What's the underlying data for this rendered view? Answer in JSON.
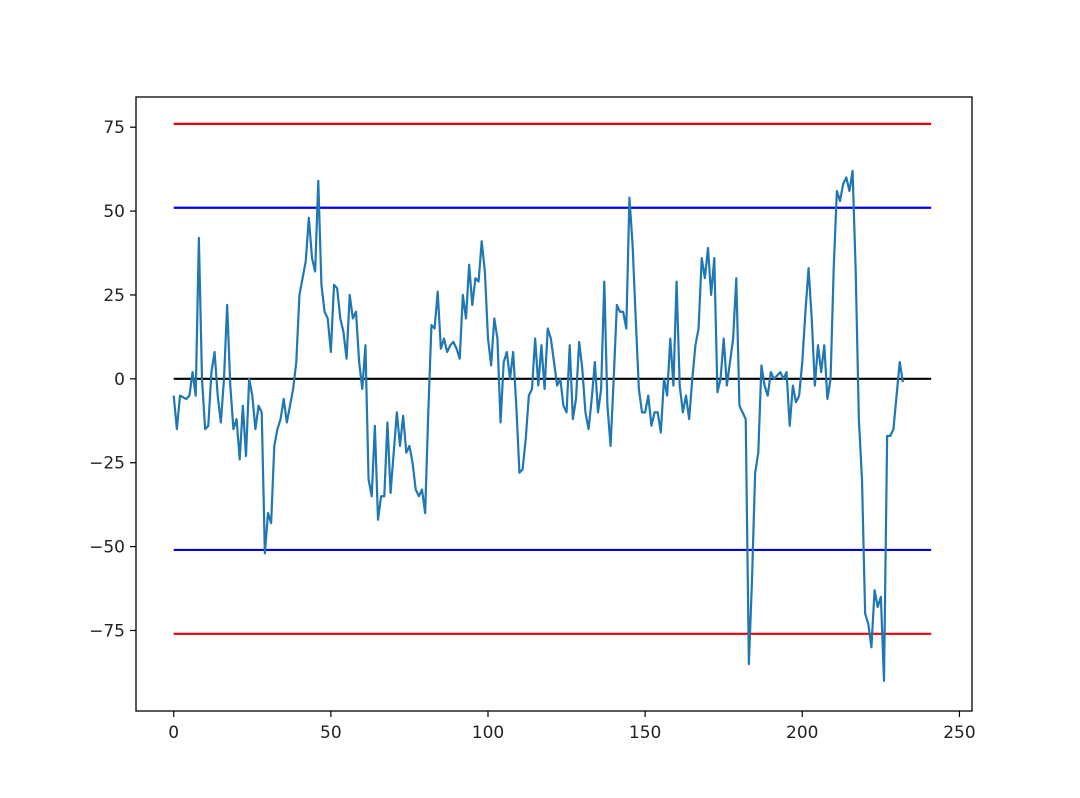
{
  "chart_data": {
    "type": "line",
    "title": "",
    "xlabel": "",
    "ylabel": "",
    "xlim": [
      -12,
      254
    ],
    "ylim": [
      -99,
      84
    ],
    "xticks": [
      0,
      50,
      100,
      150,
      200,
      250
    ],
    "yticks": [
      -75,
      -50,
      -25,
      0,
      25,
      50,
      75
    ],
    "xtick_labels": [
      "0",
      "50",
      "100",
      "150",
      "200",
      "250"
    ],
    "ytick_labels": [
      "−75",
      "−50",
      "−25",
      "0",
      "25",
      "50",
      "75"
    ],
    "grid": false,
    "reference_lines": [
      {
        "y": 76,
        "x_range": [
          0,
          241
        ],
        "color": "#e8000b"
      },
      {
        "y": 51,
        "x_range": [
          0,
          241
        ],
        "color": "#0000ee"
      },
      {
        "y": 0,
        "x_range": [
          0,
          241
        ],
        "color": "#000000"
      },
      {
        "y": -51,
        "x_range": [
          0,
          241
        ],
        "color": "#0000ee"
      },
      {
        "y": -76,
        "x_range": [
          0,
          241
        ],
        "color": "#e8000b"
      }
    ],
    "series": [
      {
        "color": "#1f77b4",
        "points": [
          [
            0,
            -5
          ],
          [
            1,
            -15
          ],
          [
            2,
            -5
          ],
          [
            4,
            -6
          ],
          [
            5,
            -5
          ],
          [
            6,
            2
          ],
          [
            7,
            -5
          ],
          [
            8,
            42
          ],
          [
            9,
            0
          ],
          [
            10,
            -15
          ],
          [
            11,
            -14
          ],
          [
            12,
            2
          ],
          [
            13,
            8
          ],
          [
            14,
            -5
          ],
          [
            15,
            -13
          ],
          [
            16,
            0
          ],
          [
            17,
            22
          ],
          [
            18,
            -2
          ],
          [
            19,
            -15
          ],
          [
            20,
            -12
          ],
          [
            21,
            -24
          ],
          [
            22,
            -8
          ],
          [
            23,
            -23
          ],
          [
            24,
            0
          ],
          [
            25,
            -5
          ],
          [
            26,
            -15
          ],
          [
            27,
            -8
          ],
          [
            28,
            -10
          ],
          [
            29,
            -52
          ],
          [
            30,
            -40
          ],
          [
            31,
            -43
          ],
          [
            32,
            -20
          ],
          [
            33,
            -15
          ],
          [
            34,
            -12
          ],
          [
            35,
            -6
          ],
          [
            36,
            -13
          ],
          [
            37,
            -8
          ],
          [
            38,
            -3
          ],
          [
            39,
            5
          ],
          [
            40,
            25
          ],
          [
            42,
            35
          ],
          [
            43,
            48
          ],
          [
            44,
            36
          ],
          [
            45,
            32
          ],
          [
            46,
            59
          ],
          [
            47,
            28
          ],
          [
            48,
            20
          ],
          [
            49,
            18
          ],
          [
            50,
            8
          ],
          [
            51,
            28
          ],
          [
            52,
            27
          ],
          [
            53,
            18
          ],
          [
            54,
            14
          ],
          [
            55,
            6
          ],
          [
            56,
            25
          ],
          [
            57,
            18
          ],
          [
            58,
            20
          ],
          [
            59,
            5
          ],
          [
            60,
            -3
          ],
          [
            61,
            10
          ],
          [
            62,
            -30
          ],
          [
            63,
            -35
          ],
          [
            64,
            -14
          ],
          [
            65,
            -42
          ],
          [
            66,
            -35
          ],
          [
            67,
            -35
          ],
          [
            68,
            -13
          ],
          [
            69,
            -34
          ],
          [
            70,
            -22
          ],
          [
            71,
            -10
          ],
          [
            72,
            -20
          ],
          [
            73,
            -11
          ],
          [
            74,
            -22
          ],
          [
            75,
            -20
          ],
          [
            76,
            -25
          ],
          [
            77,
            -33
          ],
          [
            78,
            -35
          ],
          [
            79,
            -33
          ],
          [
            80,
            -40
          ],
          [
            81,
            -10
          ],
          [
            82,
            16
          ],
          [
            83,
            15
          ],
          [
            84,
            26
          ],
          [
            85,
            9
          ],
          [
            86,
            12
          ],
          [
            87,
            8
          ],
          [
            88,
            10
          ],
          [
            89,
            11
          ],
          [
            90,
            9
          ],
          [
            91,
            6
          ],
          [
            92,
            25
          ],
          [
            93,
            18
          ],
          [
            94,
            34
          ],
          [
            95,
            22
          ],
          [
            96,
            30
          ],
          [
            97,
            29
          ],
          [
            98,
            41
          ],
          [
            99,
            32
          ],
          [
            100,
            12
          ],
          [
            101,
            4
          ],
          [
            102,
            18
          ],
          [
            103,
            12
          ],
          [
            104,
            -13
          ],
          [
            105,
            5
          ],
          [
            106,
            8
          ],
          [
            107,
            0
          ],
          [
            108,
            8
          ],
          [
            109,
            -8
          ],
          [
            110,
            -28
          ],
          [
            111,
            -27
          ],
          [
            112,
            -18
          ],
          [
            113,
            -5
          ],
          [
            114,
            -3
          ],
          [
            115,
            12
          ],
          [
            116,
            -2
          ],
          [
            117,
            10
          ],
          [
            118,
            -3
          ],
          [
            119,
            15
          ],
          [
            120,
            12
          ],
          [
            121,
            5
          ],
          [
            122,
            -2
          ],
          [
            123,
            0
          ],
          [
            124,
            -8
          ],
          [
            125,
            -10
          ],
          [
            126,
            10
          ],
          [
            127,
            -12
          ],
          [
            128,
            -6
          ],
          [
            129,
            11
          ],
          [
            130,
            3
          ],
          [
            131,
            -10
          ],
          [
            132,
            -15
          ],
          [
            133,
            -6
          ],
          [
            134,
            5
          ],
          [
            135,
            -10
          ],
          [
            136,
            -3
          ],
          [
            137,
            29
          ],
          [
            138,
            -8
          ],
          [
            139,
            -20
          ],
          [
            140,
            0
          ],
          [
            141,
            22
          ],
          [
            142,
            20
          ],
          [
            143,
            20
          ],
          [
            144,
            15
          ],
          [
            145,
            54
          ],
          [
            146,
            40
          ],
          [
            147,
            18
          ],
          [
            148,
            -3
          ],
          [
            149,
            -10
          ],
          [
            150,
            -10
          ],
          [
            151,
            -5
          ],
          [
            152,
            -14
          ],
          [
            153,
            -10
          ],
          [
            154,
            -10
          ],
          [
            155,
            -16
          ],
          [
            156,
            0
          ],
          [
            157,
            -5
          ],
          [
            158,
            12
          ],
          [
            159,
            -2
          ],
          [
            160,
            29
          ],
          [
            161,
            -2
          ],
          [
            162,
            -10
          ],
          [
            163,
            -5
          ],
          [
            164,
            -12
          ],
          [
            165,
            0
          ],
          [
            166,
            10
          ],
          [
            167,
            15
          ],
          [
            168,
            36
          ],
          [
            169,
            30
          ],
          [
            170,
            39
          ],
          [
            171,
            25
          ],
          [
            172,
            36
          ],
          [
            173,
            -4
          ],
          [
            174,
            0
          ],
          [
            175,
            12
          ],
          [
            176,
            -2
          ],
          [
            177,
            5
          ],
          [
            178,
            12
          ],
          [
            179,
            30
          ],
          [
            180,
            -8
          ],
          [
            181,
            -10
          ],
          [
            182,
            -12
          ],
          [
            183,
            -85
          ],
          [
            184,
            -60
          ],
          [
            185,
            -28
          ],
          [
            186,
            -22
          ],
          [
            187,
            4
          ],
          [
            188,
            -2
          ],
          [
            189,
            -5
          ],
          [
            190,
            2
          ],
          [
            191,
            0
          ],
          [
            192,
            1
          ],
          [
            193,
            2
          ],
          [
            194,
            0
          ],
          [
            195,
            2
          ],
          [
            196,
            -14
          ],
          [
            197,
            -2
          ],
          [
            198,
            -7
          ],
          [
            199,
            -5
          ],
          [
            200,
            5
          ],
          [
            201,
            20
          ],
          [
            202,
            33
          ],
          [
            203,
            18
          ],
          [
            204,
            -2
          ],
          [
            205,
            10
          ],
          [
            206,
            2
          ],
          [
            207,
            10
          ],
          [
            208,
            -6
          ],
          [
            209,
            0
          ],
          [
            210,
            33
          ],
          [
            211,
            56
          ],
          [
            212,
            53
          ],
          [
            213,
            58
          ],
          [
            214,
            60
          ],
          [
            215,
            56
          ],
          [
            216,
            62
          ],
          [
            217,
            32
          ],
          [
            218,
            -12
          ],
          [
            219,
            -30
          ],
          [
            220,
            -70
          ],
          [
            221,
            -73
          ],
          [
            222,
            -80
          ],
          [
            223,
            -63
          ],
          [
            224,
            -68
          ],
          [
            225,
            -65
          ],
          [
            226,
            -90
          ],
          [
            227,
            -17
          ],
          [
            228,
            -17
          ],
          [
            229,
            -15
          ],
          [
            230,
            -5
          ],
          [
            231,
            5
          ],
          [
            232,
            -1
          ]
        ]
      }
    ]
  }
}
